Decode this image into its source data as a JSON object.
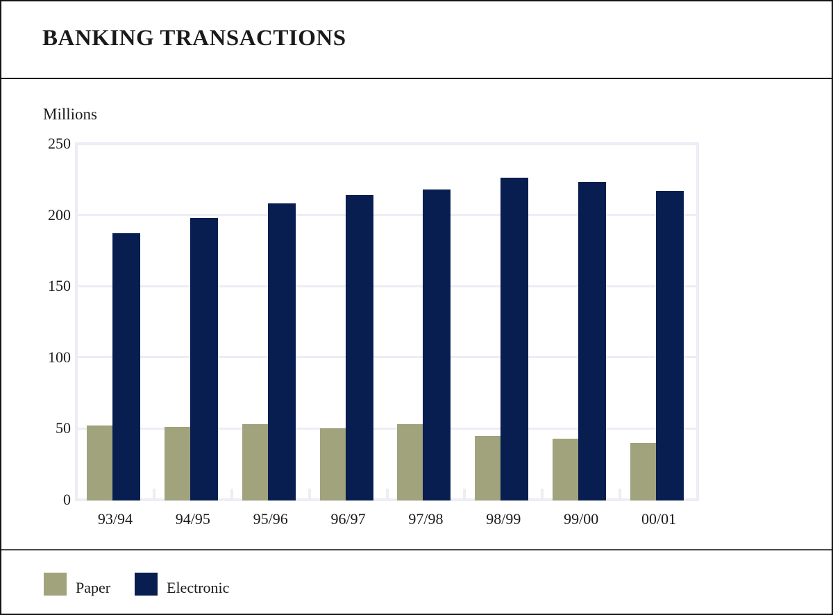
{
  "header": {
    "title": "BANKING TRANSACTIONS"
  },
  "chart_data": {
    "type": "bar",
    "title": "BANKING TRANSACTIONS",
    "ylabel": "Millions",
    "xlabel": "",
    "categories": [
      "93/94",
      "94/95",
      "95/96",
      "96/97",
      "97/98",
      "98/99",
      "99/00",
      "00/01"
    ],
    "series": [
      {
        "name": "Paper",
        "color": "#a1a37c",
        "values": [
          52,
          51,
          53,
          50,
          53,
          45,
          43,
          40
        ]
      },
      {
        "name": "Electronic",
        "color": "#081e50",
        "values": [
          187,
          198,
          208,
          214,
          218,
          226,
          223,
          217
        ]
      }
    ],
    "ylim": [
      0,
      250
    ],
    "yticks": [
      0,
      50,
      100,
      150,
      200,
      250
    ],
    "grid": true,
    "legend_position": "bottom"
  },
  "legend": {
    "items": [
      {
        "label": "Paper",
        "color": "#a1a37c"
      },
      {
        "label": "Electronic",
        "color": "#081e50"
      }
    ]
  },
  "colors": {
    "paper": "#a1a37c",
    "electronic": "#081e50",
    "gridline": "#ecedf5",
    "frame_border": "#151515",
    "legend_divider": "#4a4a4a"
  }
}
